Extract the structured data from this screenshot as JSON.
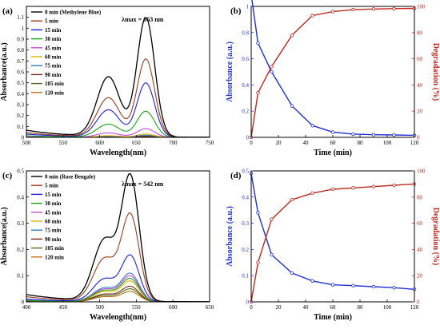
{
  "chart_data": [
    {
      "panel": "(a)",
      "type": "line",
      "xlabel": "Wavelength(nm)",
      "ylabel": "Absorbance(a.u.)",
      "xlim": [
        500,
        750
      ],
      "ylim": [
        0,
        1.2
      ],
      "xticks": [
        500,
        550,
        600,
        650,
        700,
        750
      ],
      "yticks": [
        0.0,
        0.1,
        0.2,
        0.3,
        0.4,
        0.5,
        0.6,
        0.7,
        0.8,
        0.9,
        1.0,
        1.1
      ],
      "annotation": "λmax = 663 nm",
      "legend_position": "top-left",
      "spectrum": {
        "peak": 663,
        "shoulder": 612
      },
      "series": [
        {
          "name": "0 min (Methylene Blue)",
          "color": "#000000",
          "peak": 1.1
        },
        {
          "name": "5 min",
          "color": "#a0391e",
          "peak": 0.72
        },
        {
          "name": "15 min",
          "color": "#2020e0",
          "peak": 0.5
        },
        {
          "name": "30 min",
          "color": "#1aa51a",
          "peak": 0.24
        },
        {
          "name": "45 min",
          "color": "#c44dd6",
          "peak": 0.08
        },
        {
          "name": "60 min",
          "color": "#e0b000",
          "peak": 0.03
        },
        {
          "name": "75 min",
          "color": "#2f7fd0",
          "peak": 0.02
        },
        {
          "name": "90 min",
          "color": "#7a2e16",
          "peak": 0.012
        },
        {
          "name": "105 min",
          "color": "#4f6b1c",
          "peak": 0.008
        },
        {
          "name": "120 min",
          "color": "#c07018",
          "peak": 0.005
        }
      ]
    },
    {
      "panel": "(b)",
      "type": "line",
      "xlabel": "Time (min)",
      "ylabel_left": "Absorbance (a.u.)",
      "ylabel_right": "Degradation (%)",
      "xlim": [
        0,
        120
      ],
      "ylim_left": [
        0,
        1.0
      ],
      "ylim_right": [
        0,
        100
      ],
      "xticks": [
        0,
        20,
        40,
        60,
        80,
        100,
        120
      ],
      "yticks_left": [
        0.0,
        0.2,
        0.4,
        0.6,
        0.8,
        1.0
      ],
      "yticks_right": [
        0,
        20,
        40,
        60,
        80,
        100
      ],
      "series": [
        {
          "name": "Absorbance",
          "axis": "left",
          "color": "#1f2fd8",
          "x": [
            0,
            5,
            15,
            30,
            45,
            60,
            75,
            90,
            105,
            120
          ],
          "y": [
            1.09,
            0.72,
            0.5,
            0.24,
            0.09,
            0.04,
            0.025,
            0.02,
            0.018,
            0.015
          ]
        },
        {
          "name": "Degradation",
          "axis": "right",
          "color": "#c0281c",
          "x": [
            0,
            5,
            15,
            30,
            45,
            60,
            75,
            90,
            105,
            120
          ],
          "y": [
            0,
            34,
            54,
            78,
            93,
            96,
            97.5,
            98,
            98.3,
            98.5
          ]
        }
      ]
    },
    {
      "panel": "(c)",
      "type": "line",
      "xlabel": "Wavelength(nm)",
      "ylabel": "Absorbance(a.u.)",
      "xlim": [
        400,
        650
      ],
      "ylim": [
        0,
        0.5
      ],
      "xticks": [
        400,
        450,
        500,
        550,
        600,
        650
      ],
      "yticks": [
        0.0,
        0.1,
        0.2,
        0.3,
        0.4,
        0.5
      ],
      "annotation": "λmax = 542 nm",
      "legend_position": "top-left",
      "spectrum": {
        "peak": 542,
        "shoulder": 507
      },
      "series": [
        {
          "name": "0 min (Rose Bengale)",
          "color": "#000000",
          "peak": 0.49
        },
        {
          "name": "5 min",
          "color": "#a0391e",
          "peak": 0.34
        },
        {
          "name": "15 min",
          "color": "#2020e0",
          "peak": 0.18
        },
        {
          "name": "30 min",
          "color": "#1aa51a",
          "peak": 0.09
        },
        {
          "name": "45 min",
          "color": "#c44dd6",
          "peak": 0.1
        },
        {
          "name": "60 min",
          "color": "#e0b000",
          "peak": 0.08
        },
        {
          "name": "75 min",
          "color": "#2f7fd0",
          "peak": 0.11
        },
        {
          "name": "90 min",
          "color": "#7a2e16",
          "peak": 0.06
        },
        {
          "name": "105 min",
          "color": "#4f6b1c",
          "peak": 0.05
        },
        {
          "name": "120 min",
          "color": "#c07018",
          "peak": 0.04
        }
      ]
    },
    {
      "panel": "(d)",
      "type": "line",
      "xlabel": "Time (min)",
      "ylabel_left": "Absorbance (a.u.)",
      "ylabel_right": "Degradation (%)",
      "xlim": [
        0,
        120
      ],
      "ylim_left": [
        0,
        0.5
      ],
      "ylim_right": [
        0,
        100
      ],
      "xticks": [
        0,
        20,
        40,
        60,
        80,
        100,
        120
      ],
      "yticks_left": [
        0.0,
        0.1,
        0.2,
        0.3,
        0.4,
        0.5
      ],
      "yticks_right": [
        0,
        20,
        40,
        60,
        80,
        100
      ],
      "series": [
        {
          "name": "Absorbance",
          "axis": "left",
          "color": "#1f2fd8",
          "x": [
            0,
            5,
            15,
            30,
            45,
            60,
            75,
            90,
            105,
            120
          ],
          "y": [
            0.49,
            0.34,
            0.18,
            0.11,
            0.08,
            0.065,
            0.062,
            0.058,
            0.054,
            0.048
          ]
        },
        {
          "name": "Degradation",
          "axis": "right",
          "color": "#c0281c",
          "x": [
            0,
            5,
            15,
            30,
            45,
            60,
            75,
            90,
            105,
            120
          ],
          "y": [
            0,
            30,
            63,
            78,
            83,
            86,
            87,
            88,
            89,
            90
          ]
        }
      ]
    }
  ]
}
